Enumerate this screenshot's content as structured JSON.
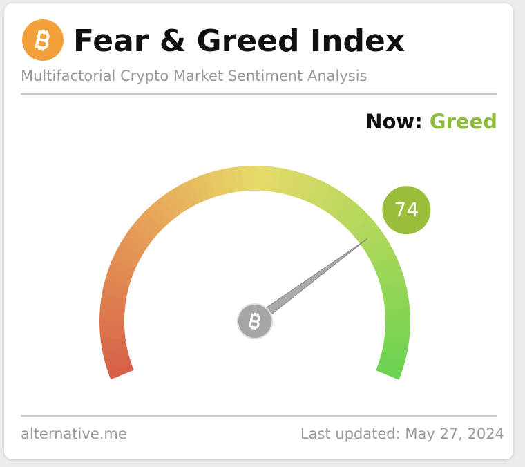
{
  "chart_data": {
    "type": "gauge",
    "title": "Fear & Greed Index",
    "subtitle": "Multifactorial Crypto Market Sentiment Analysis",
    "label": "Now:",
    "classification": "Greed",
    "value": 74,
    "ylim": [
      0,
      100
    ],
    "source": "alternative.me",
    "updated": "Last updated: May 27, 2024"
  }
}
